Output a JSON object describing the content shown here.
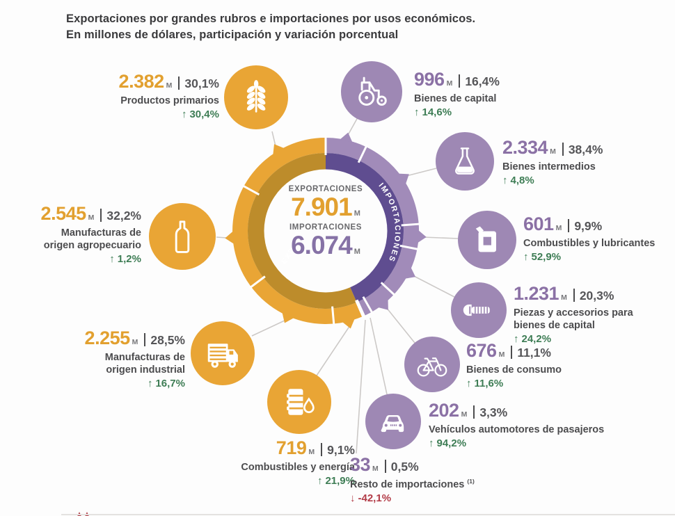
{
  "title": {
    "line1": "Exportaciones por grandes rubros e importaciones por usos económicos.",
    "line2": "En millones de dólares, participación y variación porcentual"
  },
  "center": {
    "exports_label": "EXPORTACIONES",
    "exports_value": "7.901",
    "imports_label": "IMPORTACIONES",
    "imports_value": "6.074",
    "unit": "M"
  },
  "ring": {
    "exports_text": "EXPORTACIONES",
    "imports_text": "IMPORTACIONES"
  },
  "exports": {
    "items": [
      {
        "value": "2.382",
        "unit": "M",
        "share": "30,1%",
        "label": "Productos primarios",
        "arrow": "↑",
        "change": "30,4%",
        "direction": "up",
        "icon": "wheat-icon"
      },
      {
        "value": "2.545",
        "unit": "M",
        "share": "32,2%",
        "label": "Manufacturas de origen agropecuario",
        "arrow": "↑",
        "change": "1,2%",
        "direction": "up",
        "icon": "bottle-icon"
      },
      {
        "value": "2.255",
        "unit": "M",
        "share": "28,5%",
        "label": "Manufacturas de origen industrial",
        "arrow": "↑",
        "change": "16,7%",
        "direction": "up",
        "icon": "truck-icon"
      },
      {
        "value": "719",
        "unit": "M",
        "share": "9,1%",
        "label": "Combustibles y energía",
        "arrow": "↑",
        "change": "21,9%",
        "direction": "up",
        "icon": "oil-barrel-icon"
      }
    ]
  },
  "imports": {
    "items": [
      {
        "value": "996",
        "unit": "M",
        "share": "16,4%",
        "label": "Bienes de capital",
        "arrow": "↑",
        "change": "14,6%",
        "direction": "up",
        "icon": "tractor-icon"
      },
      {
        "value": "2.334",
        "unit": "M",
        "share": "38,4%",
        "label": "Bienes intermedios",
        "arrow": "↑",
        "change": "4,8%",
        "direction": "up",
        "icon": "flask-icon"
      },
      {
        "value": "601",
        "unit": "M",
        "share": "9,9%",
        "label": "Combustibles y lubricantes",
        "arrow": "↑",
        "change": "52,9%",
        "direction": "up",
        "icon": "jerrycan-icon"
      },
      {
        "value": "1.231",
        "unit": "M",
        "share": "20,3%",
        "label": "Piezas y accesorios para bienes de capital",
        "arrow": "↑",
        "change": "24,2%",
        "direction": "up",
        "icon": "screw-icon"
      },
      {
        "value": "676",
        "unit": "M",
        "share": "11,1%",
        "label": "Bienes de consumo",
        "arrow": "↑",
        "change": "11,6%",
        "direction": "up",
        "icon": "bicycle-icon"
      },
      {
        "value": "202",
        "unit": "M",
        "share": "3,3%",
        "label": "Vehículos automotores de pasajeros",
        "arrow": "↑",
        "change": "94,2%",
        "direction": "up",
        "icon": "car-icon"
      },
      {
        "value": "33",
        "unit": "M",
        "share": "0,5%",
        "label": "Resto de importaciones",
        "footnote": "(1)",
        "arrow": "↓",
        "change": "-42,1%",
        "direction": "down",
        "icon": null
      }
    ]
  },
  "colors": {
    "export_main": "#E9A535",
    "export_dark": "#BD8C2B",
    "import_main": "#A18BB9",
    "import_dark": "#5F4D90",
    "import_badge": "#9E88B4",
    "export_number": "#E2A02F",
    "import_number": "#8B71A5",
    "positive_green": "#3E7D55",
    "negative_red": "#B23B47",
    "divider": "#FFFFFF"
  },
  "chart_data": {
    "type": "pie",
    "subtype": "double-half-donut",
    "title": "Exportaciones por grandes rubros e importaciones por usos económicos. En millones de dólares, participación y variación porcentual",
    "unit": "millones de dólares (M)",
    "series": [
      {
        "name": "Exportaciones",
        "total": 7901,
        "categories": [
          "Productos primarios",
          "Manufacturas de origen agropecuario",
          "Manufacturas de origen industrial",
          "Combustibles y energía"
        ],
        "values": [
          2382,
          2545,
          2255,
          719
        ],
        "shares_pct": [
          30.1,
          32.2,
          28.5,
          9.1
        ],
        "yoy_change_pct": [
          30.4,
          1.2,
          16.7,
          21.9
        ]
      },
      {
        "name": "Importaciones",
        "total": 6074,
        "categories": [
          "Bienes de capital",
          "Bienes intermedios",
          "Combustibles y lubricantes",
          "Piezas y accesorios para bienes de capital",
          "Bienes de consumo",
          "Vehículos automotores de pasajeros",
          "Resto de importaciones"
        ],
        "values": [
          996,
          2334,
          601,
          1231,
          676,
          202,
          33
        ],
        "shares_pct": [
          16.4,
          38.4,
          9.9,
          20.3,
          11.1,
          3.3,
          0.5
        ],
        "yoy_change_pct": [
          14.6,
          4.8,
          52.9,
          24.2,
          11.6,
          94.2,
          -42.1
        ]
      }
    ],
    "layout": {
      "exports_side": "left",
      "imports_side": "right",
      "start": "top",
      "legend": "none"
    }
  }
}
